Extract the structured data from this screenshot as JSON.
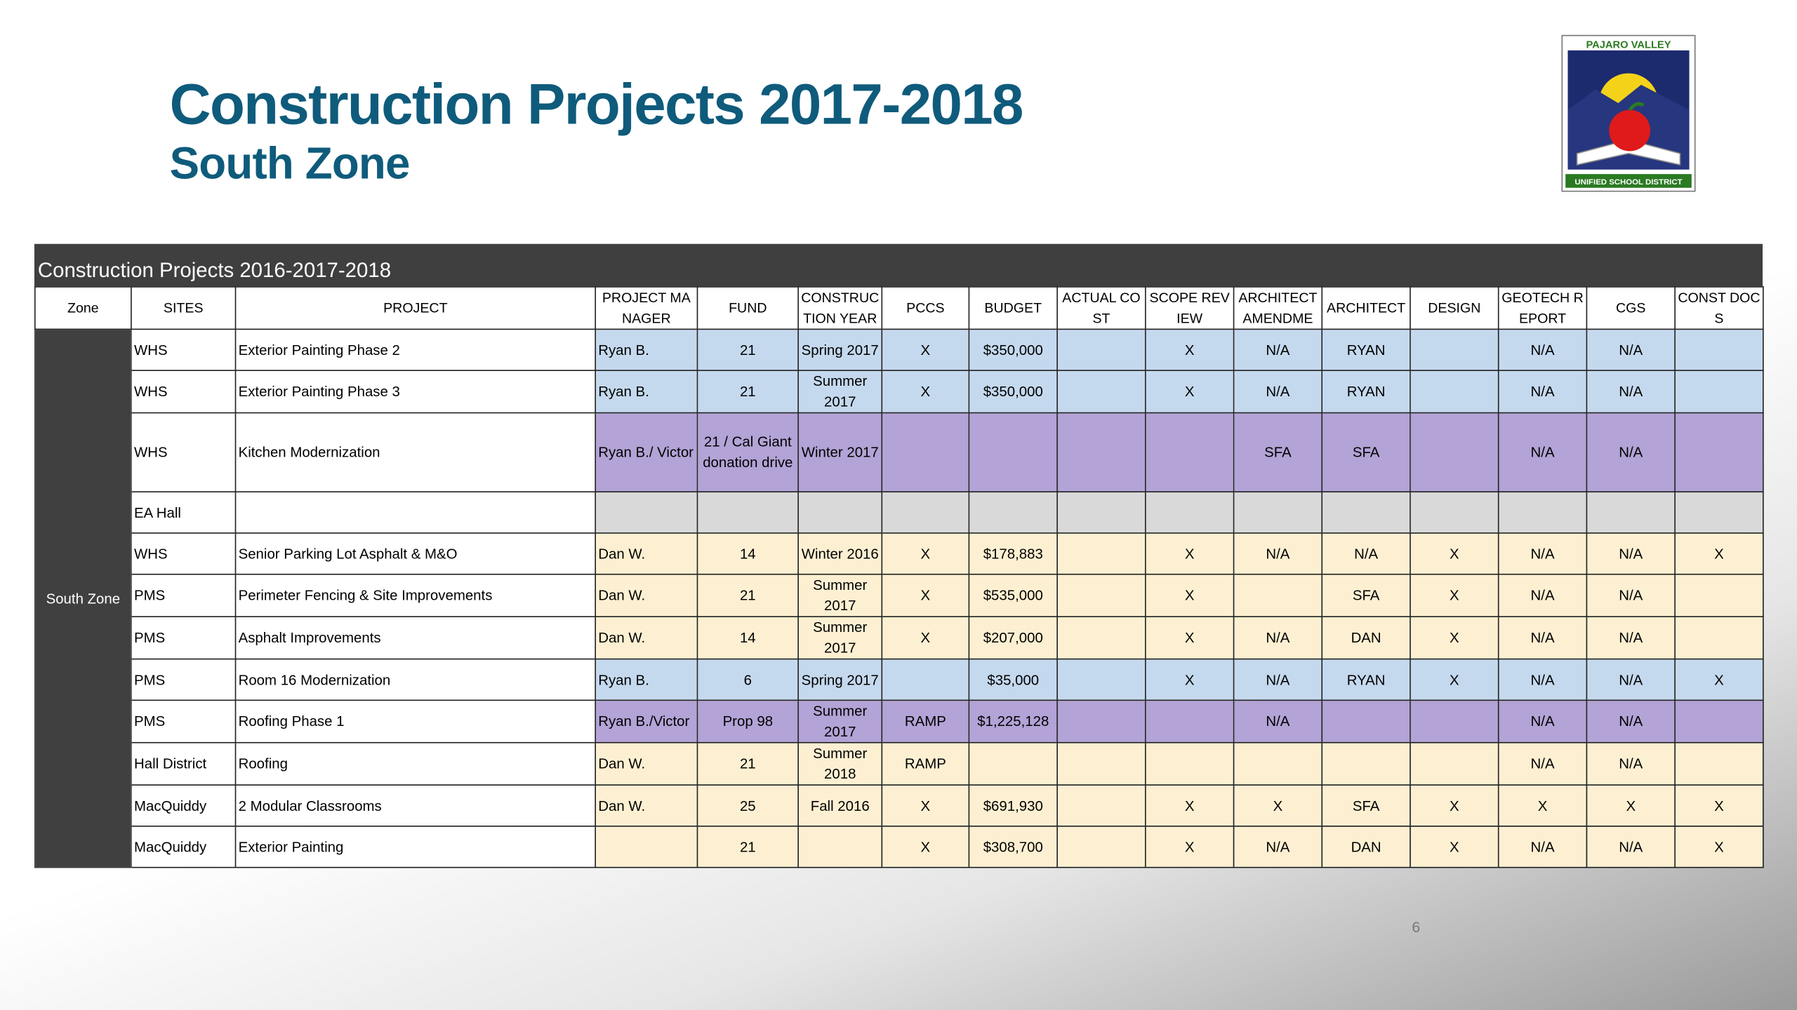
{
  "header": {
    "title": "Construction Projects 2017-2018",
    "subtitle": "South Zone"
  },
  "logo": {
    "top": "PAJARO VALLEY",
    "bottom": "UNIFIED SCHOOL DISTRICT"
  },
  "table": {
    "caption": "Construction Projects 2016-2017-2018",
    "headers": [
      "Zone",
      "SITES",
      "PROJECT",
      "PROJECT MANAGER",
      "FUND",
      "CONSTRUCTION YEAR",
      "PCCS",
      "BUDGET",
      "ACTUAL COST",
      "SCOPE REVIEW",
      "ARCHITECT AMENDME",
      "ARCHITECT",
      "DESIGN",
      "GEOTECH REPORT",
      "CGS",
      "CONST DOCS"
    ],
    "zone": "South Zone",
    "rows": [
      {
        "color": "#c5d9ee",
        "cells": [
          "WHS",
          "Exterior Painting Phase 2",
          "Ryan B.",
          "21",
          "Spring 2017",
          "X",
          "$350,000",
          null,
          "X",
          "N/A",
          "RYAN",
          null,
          "N/A",
          "N/A",
          null
        ]
      },
      {
        "color": "#c5d9ee",
        "cells": [
          "WHS",
          "Exterior Painting Phase 3",
          "Ryan B.",
          "21",
          "Summer 2017",
          "X",
          "$350,000",
          null,
          "X",
          "N/A",
          "RYAN",
          null,
          "N/A",
          "N/A",
          null
        ]
      },
      {
        "color": "#b3a3d6",
        "cells": [
          "WHS",
          "Kitchen Modernization",
          "Ryan B./ Victor",
          "21 / Cal Giant donation drive",
          "Winter 2017",
          null,
          null,
          null,
          null,
          "SFA",
          "SFA",
          null,
          "N/A",
          "N/A",
          null
        ]
      },
      {
        "color": "#d9d9d9",
        "cells": [
          "EA Hall",
          null,
          null,
          null,
          null,
          null,
          null,
          null,
          null,
          null,
          null,
          null,
          null,
          null,
          null
        ]
      },
      {
        "color": "#fdf0d2",
        "cells": [
          "WHS",
          "Senior Parking Lot Asphalt & M&O",
          "Dan W.",
          "14",
          "Winter 2016",
          "X",
          "$178,883",
          null,
          "X",
          "N/A",
          "N/A",
          "X",
          "N/A",
          "N/A",
          "X"
        ]
      },
      {
        "color": "#fdf0d2",
        "cells": [
          "PMS",
          "Perimeter Fencing & Site Improvements",
          "Dan W.",
          "21",
          "Summer 2017",
          "X",
          "$535,000",
          null,
          "X",
          null,
          "SFA",
          "X",
          "N/A",
          "N/A",
          null
        ]
      },
      {
        "color": "#fdf0d2",
        "cells": [
          "PMS",
          "Asphalt Improvements",
          "Dan W.",
          "14",
          "Summer 2017",
          "X",
          "$207,000",
          null,
          "X",
          "N/A",
          "DAN",
          "X",
          "N/A",
          "N/A",
          null
        ]
      },
      {
        "color": "#c5d9ee",
        "cells": [
          "PMS",
          "Room 16 Modernization",
          "Ryan B.",
          "6",
          "Spring 2017",
          null,
          "$35,000",
          null,
          "X",
          "N/A",
          "RYAN",
          "X",
          "N/A",
          "N/A",
          "X"
        ]
      },
      {
        "color": "#b3a3d6",
        "cells": [
          "PMS",
          "Roofing Phase 1",
          "Ryan B./Victor",
          "Prop 98",
          "Summer 2017",
          "RAMP",
          "$1,225,128",
          null,
          null,
          "N/A",
          null,
          null,
          "N/A",
          "N/A",
          null
        ]
      },
      {
        "color": "#fdf0d2",
        "cells": [
          "Hall District",
          "Roofing",
          "Dan W.",
          "21",
          "Summer 2018",
          "RAMP",
          null,
          null,
          null,
          null,
          null,
          null,
          "N/A",
          "N/A",
          null
        ]
      },
      {
        "color": "#fdf0d2",
        "cells": [
          "MacQuiddy",
          "2 Modular Classrooms",
          "Dan W.",
          "25",
          "Fall 2016",
          "X",
          "$691,930",
          null,
          "X",
          "X",
          "SFA",
          "X",
          "X",
          "X",
          "X"
        ]
      },
      {
        "color": "#fdf0d2",
        "cells": [
          "MacQuiddy",
          "Exterior Painting",
          null,
          "21",
          null,
          "X",
          "$308,700",
          null,
          "X",
          "N/A",
          "DAN",
          "X",
          "N/A",
          "N/A",
          "X"
        ]
      }
    ]
  },
  "page_number": "6"
}
